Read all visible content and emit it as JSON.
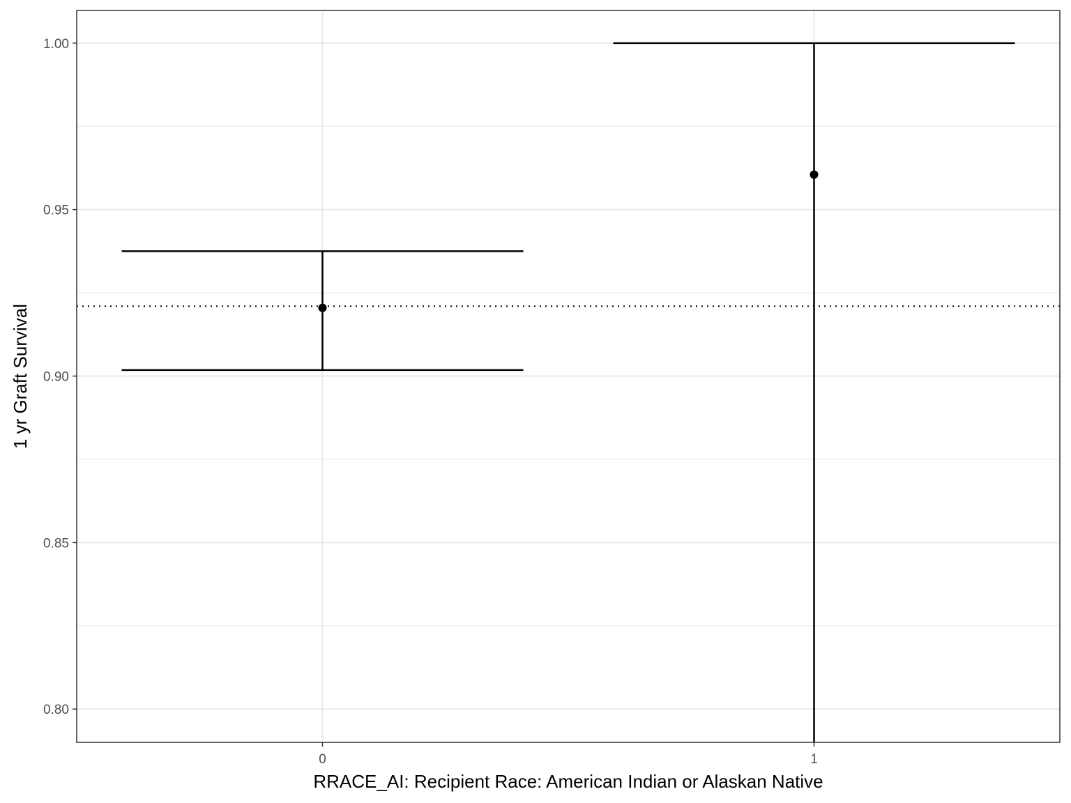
{
  "chart_data": {
    "type": "errorbar",
    "title": "",
    "xlabel": "RRACE_AI: Recipient Race: American Indian or Alaskan Native",
    "ylabel": "1 yr Graft Survival",
    "categories": [
      "0",
      "1"
    ],
    "points": [
      {
        "category": "0",
        "estimate": 0.9205,
        "lower": 0.9018,
        "upper": 0.9375
      },
      {
        "category": "1",
        "estimate": 0.9605,
        "lower": 0.79,
        "upper": 1.0
      }
    ],
    "reference_line": {
      "y": 0.921,
      "style": "dotted"
    },
    "ylim": [
      0.79,
      1.0098
    ],
    "y_ticks": [
      0.8,
      0.85,
      0.9,
      0.95,
      1.0
    ],
    "y_tick_labels": [
      "0.80",
      "0.85",
      "0.90",
      "0.95",
      "1.00"
    ],
    "y_minor_ticks": [
      0.825,
      0.875,
      0.925,
      0.975
    ],
    "grid": true,
    "legend": "none",
    "colors": {
      "mark": "#000000",
      "grid": "#ebebeb",
      "panel_border": "#333333",
      "tick_text": "#4d4d4d"
    }
  }
}
